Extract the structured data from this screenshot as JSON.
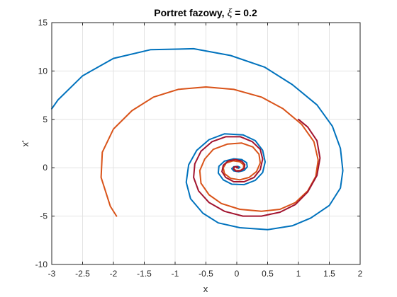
{
  "chart_data": {
    "type": "line",
    "title_prefix": "Portret fazowy, ",
    "title_symbol": "ξ",
    "title_suffix": " = 0.2",
    "xlabel": "x",
    "ylabel": "x'",
    "xlim": [
      -3,
      2
    ],
    "ylim": [
      -10,
      15
    ],
    "xticks": [
      -3,
      -2.5,
      -2,
      -1.5,
      -1,
      -0.5,
      0,
      0.5,
      1,
      1.5,
      2
    ],
    "yticks": [
      -10,
      -5,
      0,
      5,
      10,
      15
    ],
    "grid": true,
    "series": [
      {
        "color": "#0072BD",
        "points": [
          [
            -3,
            6.1
          ],
          [
            -2.9,
            7.0
          ],
          [
            -2.5,
            9.5
          ],
          [
            -2.0,
            11.3
          ],
          [
            -1.4,
            12.2
          ],
          [
            -0.7,
            12.3
          ],
          [
            -0.1,
            11.6
          ],
          [
            0.45,
            10.4
          ],
          [
            0.9,
            8.6
          ],
          [
            1.3,
            6.5
          ],
          [
            1.55,
            4.3
          ],
          [
            1.68,
            2.0
          ],
          [
            1.72,
            -0.3
          ],
          [
            1.68,
            -2.1
          ],
          [
            1.5,
            -3.9
          ],
          [
            1.2,
            -5.2
          ],
          [
            0.9,
            -6.0
          ],
          [
            0.5,
            -6.4
          ],
          [
            0.05,
            -6.2
          ],
          [
            -0.3,
            -5.7
          ],
          [
            -0.55,
            -4.7
          ],
          [
            -0.75,
            -3.2
          ],
          [
            -0.82,
            -1.5
          ],
          [
            -0.78,
            0.3
          ],
          [
            -0.65,
            1.8
          ],
          [
            -0.45,
            2.9
          ],
          [
            -0.2,
            3.5
          ],
          [
            0.1,
            3.4
          ],
          [
            0.3,
            2.8
          ],
          [
            0.42,
            1.8
          ],
          [
            0.46,
            0.6
          ],
          [
            0.42,
            -0.5
          ],
          [
            0.3,
            -1.3
          ],
          [
            0.12,
            -1.75
          ],
          [
            -0.08,
            -1.7
          ],
          [
            -0.22,
            -1.25
          ],
          [
            -0.3,
            -0.55
          ],
          [
            -0.29,
            0.15
          ],
          [
            -0.2,
            0.68
          ],
          [
            -0.05,
            0.92
          ],
          [
            0.08,
            0.85
          ],
          [
            0.16,
            0.52
          ],
          [
            0.17,
            0.1
          ],
          [
            0.12,
            -0.28
          ],
          [
            0.03,
            -0.42
          ],
          [
            -0.05,
            -0.33
          ],
          [
            -0.08,
            -0.1
          ],
          [
            -0.05,
            0.1
          ],
          [
            0.02,
            0.14
          ],
          [
            0.05,
            0.05
          ],
          [
            0.03,
            -0.05
          ],
          [
            0.0,
            0.0
          ]
        ]
      },
      {
        "color": "#D95319",
        "points": [
          [
            -1.95,
            -5.0
          ],
          [
            -2.05,
            -4.0
          ],
          [
            -2.2,
            -1.0
          ],
          [
            -2.18,
            1.6
          ],
          [
            -2.0,
            4.0
          ],
          [
            -1.7,
            5.9
          ],
          [
            -1.35,
            7.3
          ],
          [
            -0.95,
            8.1
          ],
          [
            -0.5,
            8.35
          ],
          [
            -0.05,
            8.1
          ],
          [
            0.4,
            7.3
          ],
          [
            0.75,
            6.1
          ],
          [
            1.05,
            4.5
          ],
          [
            1.25,
            2.7
          ],
          [
            1.32,
            0.8
          ],
          [
            1.28,
            -0.9
          ],
          [
            1.15,
            -2.4
          ],
          [
            0.95,
            -3.6
          ],
          [
            0.7,
            -4.3
          ],
          [
            0.4,
            -4.5
          ],
          [
            0.05,
            -4.3
          ],
          [
            -0.25,
            -3.7
          ],
          [
            -0.45,
            -2.8
          ],
          [
            -0.58,
            -1.6
          ],
          [
            -0.6,
            -0.3
          ],
          [
            -0.52,
            0.9
          ],
          [
            -0.38,
            1.9
          ],
          [
            -0.15,
            2.45
          ],
          [
            0.08,
            2.55
          ],
          [
            0.26,
            2.15
          ],
          [
            0.36,
            1.4
          ],
          [
            0.38,
            0.5
          ],
          [
            0.32,
            -0.4
          ],
          [
            0.2,
            -1.0
          ],
          [
            0.05,
            -1.25
          ],
          [
            -0.1,
            -1.1
          ],
          [
            -0.2,
            -0.6
          ],
          [
            -0.22,
            0.0
          ],
          [
            -0.17,
            0.5
          ],
          [
            -0.06,
            0.72
          ],
          [
            0.05,
            0.62
          ],
          [
            0.11,
            0.3
          ],
          [
            0.11,
            -0.05
          ],
          [
            0.06,
            -0.28
          ],
          [
            -0.01,
            -0.3
          ],
          [
            -0.05,
            -0.12
          ],
          [
            -0.04,
            0.06
          ],
          [
            0.0,
            0.1
          ],
          [
            0.02,
            0.03
          ],
          [
            0.0,
            0.0
          ]
        ]
      },
      {
        "color": "#A2142F",
        "points": [
          [
            1.0,
            5.0
          ],
          [
            1.15,
            4.2
          ],
          [
            1.3,
            2.8
          ],
          [
            1.35,
            1.0
          ],
          [
            1.3,
            -0.8
          ],
          [
            1.15,
            -2.5
          ],
          [
            0.95,
            -3.8
          ],
          [
            0.7,
            -4.6
          ],
          [
            0.4,
            -5.0
          ],
          [
            0.1,
            -5.0
          ],
          [
            -0.2,
            -4.5
          ],
          [
            -0.45,
            -3.6
          ],
          [
            -0.62,
            -2.4
          ],
          [
            -0.7,
            -1.0
          ],
          [
            -0.68,
            0.4
          ],
          [
            -0.58,
            1.7
          ],
          [
            -0.4,
            2.7
          ],
          [
            -0.18,
            3.2
          ],
          [
            0.06,
            3.2
          ],
          [
            0.25,
            2.7
          ],
          [
            0.38,
            1.9
          ],
          [
            0.42,
            0.9
          ],
          [
            0.38,
            -0.2
          ],
          [
            0.28,
            -1.0
          ],
          [
            0.12,
            -1.45
          ],
          [
            -0.05,
            -1.45
          ],
          [
            -0.18,
            -1.0
          ],
          [
            -0.24,
            -0.4
          ],
          [
            -0.22,
            0.25
          ],
          [
            -0.14,
            0.7
          ],
          [
            -0.02,
            0.85
          ],
          [
            0.08,
            0.68
          ],
          [
            0.13,
            0.32
          ],
          [
            0.12,
            -0.08
          ],
          [
            0.06,
            -0.32
          ],
          [
            -0.01,
            -0.35
          ],
          [
            -0.05,
            -0.16
          ],
          [
            -0.05,
            0.05
          ],
          [
            -0.01,
            0.12
          ],
          [
            0.02,
            0.05
          ],
          [
            0.0,
            0.0
          ]
        ]
      }
    ]
  }
}
